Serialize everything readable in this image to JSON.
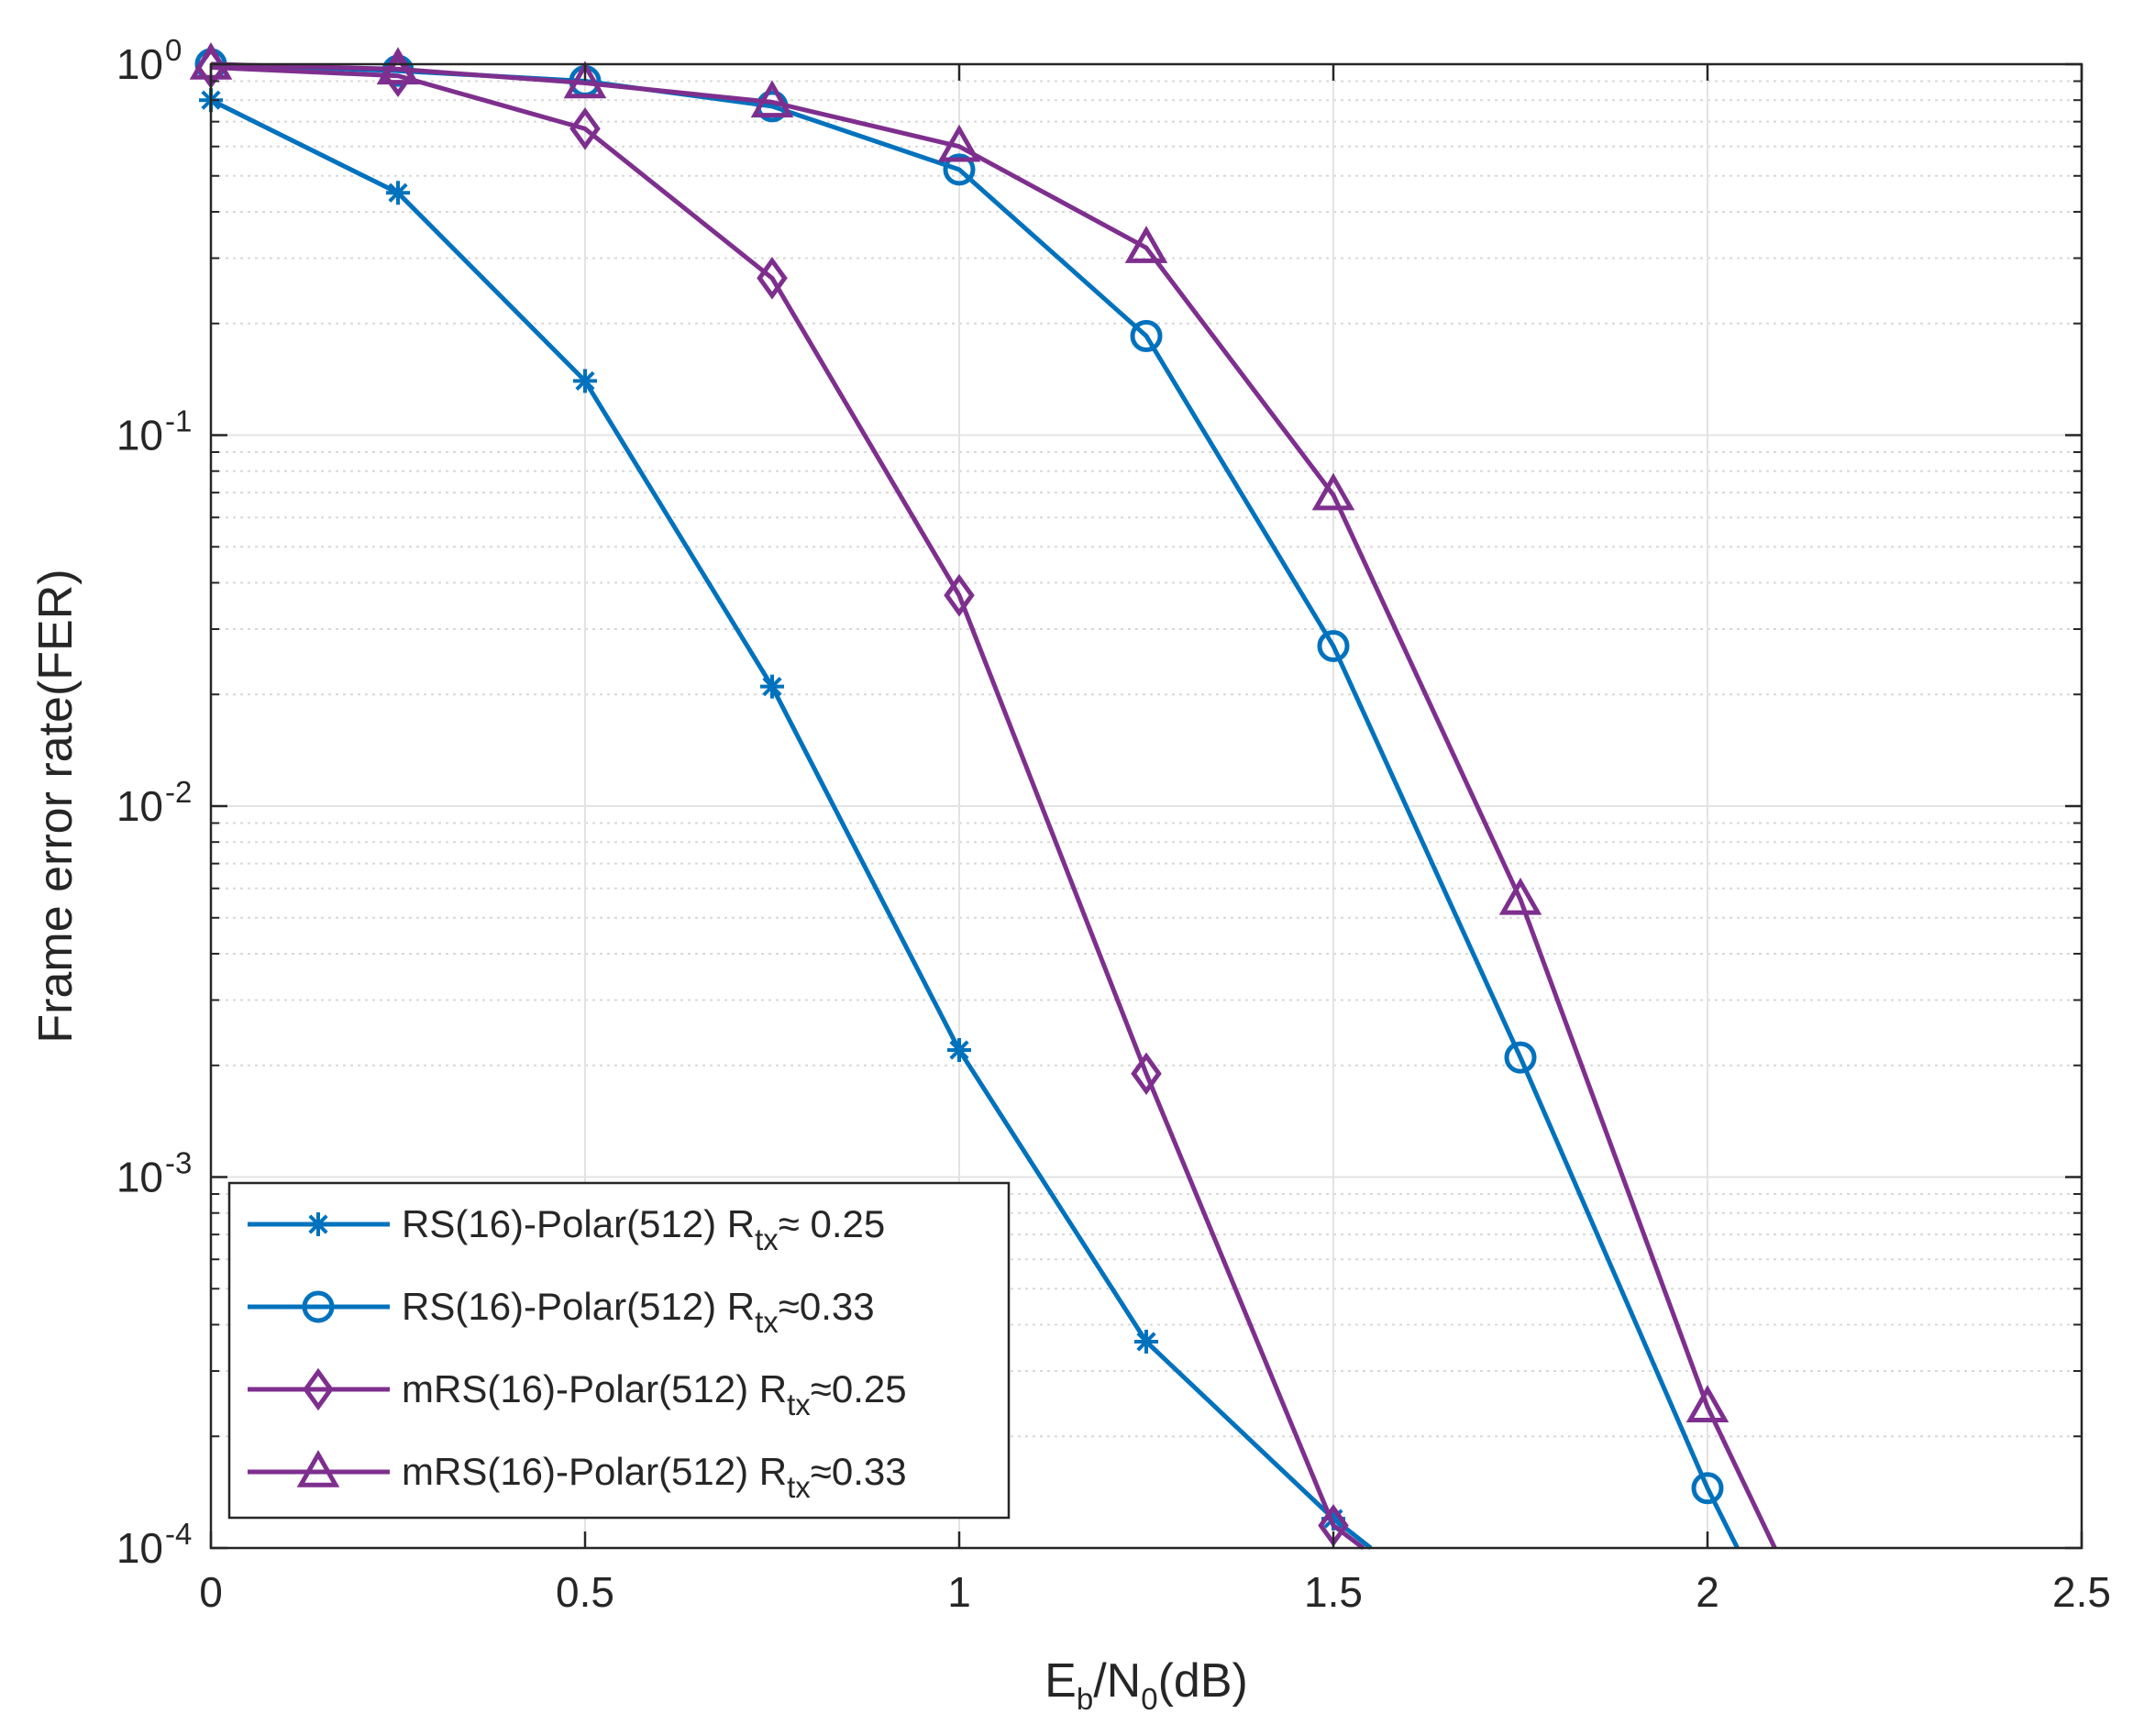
{
  "chart_data": {
    "type": "line",
    "x_scale": "linear",
    "y_scale": "log",
    "xlim": [
      0,
      2.5
    ],
    "ylim": [
      0.0001,
      1
    ],
    "grid": true,
    "minor_grid": true,
    "xlabel": {
      "prefix": "E",
      "sub1": "b",
      "mid": "/N",
      "sub2": "0",
      "suffix": "(dB)"
    },
    "ylabel": "Frame error rate(FER)",
    "x_ticks": [
      {
        "value": 0,
        "label": "0"
      },
      {
        "value": 0.5,
        "label": "0.5"
      },
      {
        "value": 1,
        "label": "1"
      },
      {
        "value": 1.5,
        "label": "1.5"
      },
      {
        "value": 2,
        "label": "2"
      },
      {
        "value": 2.5,
        "label": "2.5"
      }
    ],
    "y_ticks": [
      {
        "value": 1,
        "base": "10",
        "exp": "0"
      },
      {
        "value": 0.1,
        "base": "10",
        "exp": "-1"
      },
      {
        "value": 0.01,
        "base": "10",
        "exp": "-2"
      },
      {
        "value": 0.001,
        "base": "10",
        "exp": "-3"
      },
      {
        "value": 0.0001,
        "base": "10",
        "exp": "-4"
      }
    ],
    "legend_position": "bottom-left",
    "series": [
      {
        "name": "RS(16)-Polar(512) R_tx≈ 0.25",
        "legend_main": "RS(16)-Polar(512) R",
        "legend_sub": "tx",
        "legend_tail": "≈ 0.25",
        "color": "#0072BD",
        "marker": "asterisk",
        "x": [
          0,
          0.25,
          0.5,
          0.75,
          1,
          1.25,
          1.5,
          1.55
        ],
        "y": [
          0.8,
          0.45,
          0.14,
          0.021,
          0.0022,
          0.00036,
          0.00012,
          0.0001
        ],
        "marker_count": 7
      },
      {
        "name": "RS(16)-Polar(512) R_tx≈0.33",
        "legend_main": "RS(16)-Polar(512) R",
        "legend_sub": "tx",
        "legend_tail": "≈0.33",
        "color": "#0072BD",
        "marker": "circle",
        "x": [
          0,
          0.25,
          0.5,
          0.75,
          1,
          1.25,
          1.5,
          1.75,
          2,
          2.04
        ],
        "y": [
          1.0,
          0.96,
          0.9,
          0.77,
          0.52,
          0.185,
          0.027,
          0.0021,
          0.000145,
          0.0001
        ],
        "marker_count": 9
      },
      {
        "name": "mRS(16)-Polar(512) R_tx≈0.25",
        "legend_main": "mRS(16)-Polar(512) R",
        "legend_sub": "tx",
        "legend_tail": "≈0.25",
        "color": "#7E2F8E",
        "marker": "diamond",
        "x": [
          0,
          0.25,
          0.5,
          0.75,
          1,
          1.25,
          1.5,
          1.54
        ],
        "y": [
          0.98,
          0.93,
          0.67,
          0.265,
          0.037,
          0.0019,
          0.000115,
          0.0001
        ],
        "marker_count": 7
      },
      {
        "name": "mRS(16)-Polar(512) R_tx≈0.33",
        "legend_main": "mRS(16)-Polar(512) R",
        "legend_sub": "tx",
        "legend_tail": "≈0.33",
        "color": "#7E2F8E",
        "marker": "triangle",
        "x": [
          0,
          0.25,
          0.5,
          0.75,
          1,
          1.25,
          1.5,
          1.75,
          2,
          2.09
        ],
        "y": [
          1.0,
          0.97,
          0.89,
          0.79,
          0.6,
          0.32,
          0.069,
          0.0056,
          0.00024,
          0.0001
        ],
        "marker_count": 9
      }
    ]
  }
}
